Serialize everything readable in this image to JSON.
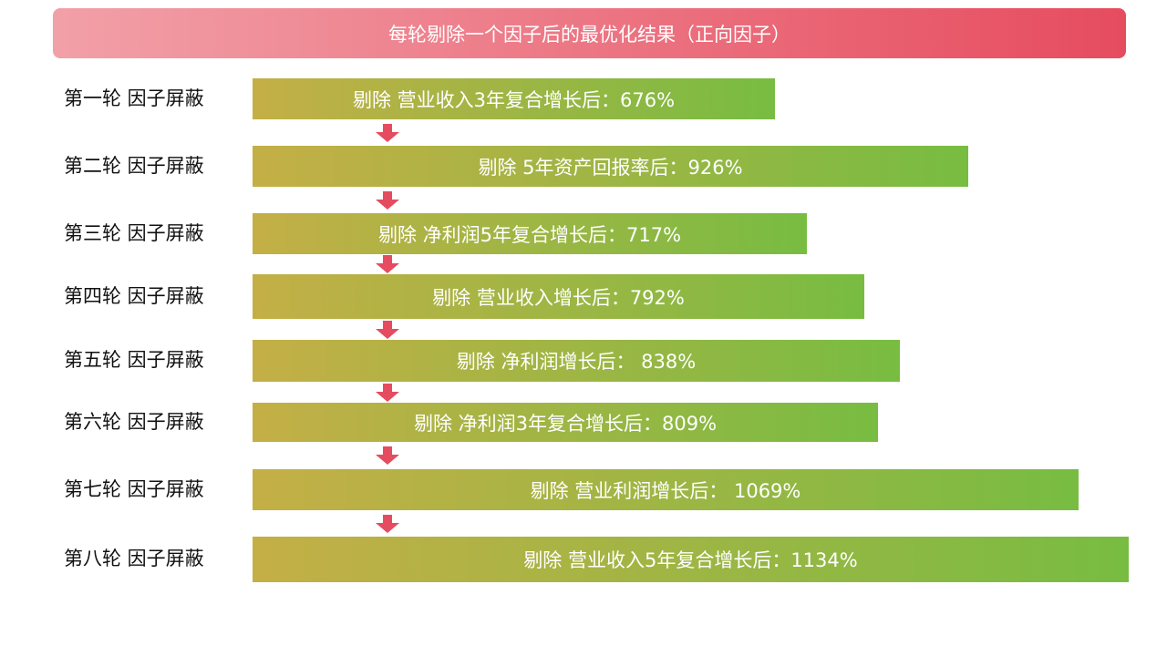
{
  "title": "每轮剔除一个因子后的最优化结果（正向因子）",
  "colors": {
    "banner_start": "#F2A0A8",
    "banner_end": "#E64C5F",
    "bar_start": "#C4AF46",
    "bar_end": "#78BC42",
    "arrow": "#E64C5F"
  },
  "arrow_icon": "down-arrow-icon",
  "chart_data": {
    "type": "bar",
    "orientation": "horizontal",
    "title": "每轮剔除一个因子后的最优化结果（正向因子）",
    "categories": [
      "第一轮 因子屏蔽",
      "第二轮 因子屏蔽",
      "第三轮 因子屏蔽",
      "第四轮 因子屏蔽",
      "第五轮 因子屏蔽",
      "第六轮 因子屏蔽",
      "第七轮 因子屏蔽",
      "第八轮 因子屏蔽"
    ],
    "values": [
      676,
      926,
      717,
      792,
      838,
      809,
      1069,
      1134
    ],
    "unit": "%",
    "data_labels": [
      "剔除 营业收入3年复合增长后：676%",
      "剔除 5年资产回报率后：926%",
      "剔除 净利润5年复合增长后：717%",
      "剔除 营业收入增长后：792%",
      "剔除 净利润增长后： 838%",
      "剔除 净利润3年复合增长后：809%",
      "剔除 营业利润增长后： 1069%",
      "剔除 营业收入5年复合增长后：1134%"
    ],
    "grid": false,
    "legend": "none"
  }
}
